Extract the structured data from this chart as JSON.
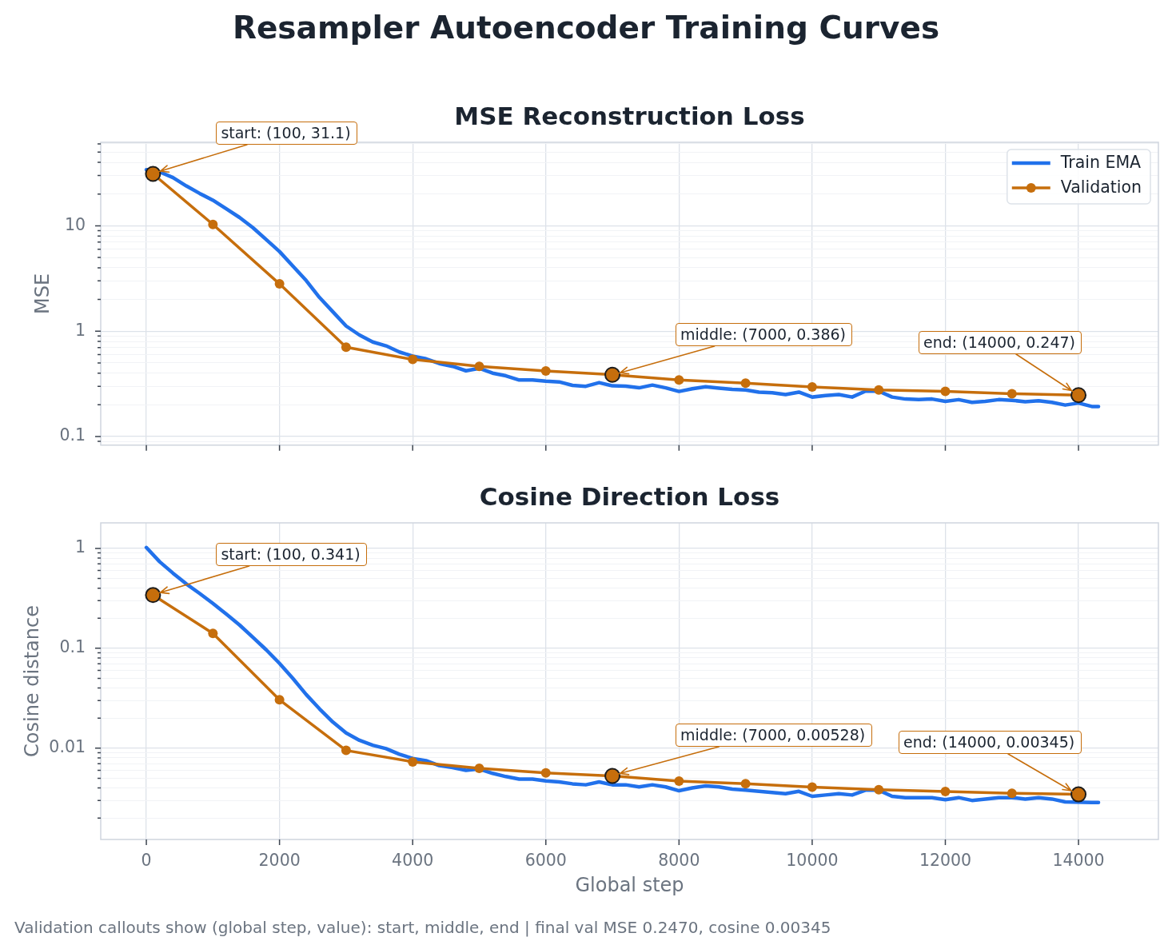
{
  "chart_data": [
    {
      "type": "other",
      "title": "Resampler Autoencoder Training Curves"
    },
    {
      "type": "line",
      "title": "MSE Reconstruction Loss",
      "ylabel": "MSE",
      "log": "y",
      "grid": true,
      "legend": "top right",
      "tick_labels": "y",
      "xlim": [
        -685,
        15200
      ],
      "xticks": [
        0,
        2000,
        4000,
        6000,
        8000,
        10000,
        12000,
        14000
      ],
      "ylim": [
        0.083,
        62
      ],
      "yticks": [
        {
          "value": 0.09,
          "label": null
        },
        0.1,
        {
          "value": 0.2,
          "label": null
        },
        {
          "value": 0.3,
          "label": null
        },
        {
          "value": 0.4,
          "label": null
        },
        {
          "value": 0.5,
          "label": null
        },
        {
          "value": 0.6,
          "label": null
        },
        {
          "value": 0.7,
          "label": null
        },
        {
          "value": 0.8,
          "label": null
        },
        {
          "value": 0.9,
          "label": null
        },
        1,
        {
          "value": 2,
          "label": null
        },
        {
          "value": 3,
          "label": null
        },
        {
          "value": 4,
          "label": null
        },
        {
          "value": 5,
          "label": null
        },
        {
          "value": 6,
          "label": null
        },
        {
          "value": 7,
          "label": null
        },
        {
          "value": 8,
          "label": null
        },
        {
          "value": 9,
          "label": null
        },
        10,
        {
          "value": 20,
          "label": null
        },
        {
          "value": 30,
          "label": null
        },
        {
          "value": 40,
          "label": null
        },
        {
          "value": 50,
          "label": null
        },
        {
          "value": 60,
          "label": null
        }
      ],
      "series": [
        {
          "name": "Train EMA",
          "color": "#2171eb",
          "marker": "none",
          "x": [
            0,
            200,
            400,
            600,
            800,
            1000,
            1200,
            1400,
            1600,
            1800,
            2000,
            2200,
            2400,
            2600,
            2800,
            3000,
            3200,
            3400,
            3600,
            3800,
            4000,
            4200,
            4400,
            4600,
            4800,
            5000,
            5200,
            5400,
            5600,
            5800,
            6000,
            6200,
            6400,
            6600,
            6800,
            7000,
            7200,
            7400,
            7600,
            7800,
            8000,
            8200,
            8400,
            8600,
            8800,
            9000,
            9200,
            9400,
            9600,
            9800,
            10000,
            10200,
            10400,
            10600,
            10800,
            11000,
            11200,
            11400,
            11600,
            11800,
            12000,
            12200,
            12400,
            12600,
            12800,
            13000,
            13200,
            13400,
            13600,
            13800,
            14000,
            14200,
            14300
          ],
          "values": [
            34.1,
            32.5,
            28.7,
            23.9,
            20.3,
            17.5,
            14.5,
            12.0,
            9.6,
            7.4,
            5.7,
            4.15,
            3.03,
            2.09,
            1.53,
            1.12,
            0.92,
            0.79,
            0.726,
            0.635,
            0.58,
            0.547,
            0.493,
            0.464,
            0.421,
            0.444,
            0.4,
            0.377,
            0.344,
            0.345,
            0.335,
            0.33,
            0.306,
            0.3,
            0.325,
            0.303,
            0.301,
            0.29,
            0.308,
            0.29,
            0.268,
            0.284,
            0.297,
            0.288,
            0.28,
            0.277,
            0.264,
            0.26,
            0.25,
            0.264,
            0.237,
            0.245,
            0.25,
            0.237,
            0.27,
            0.27,
            0.237,
            0.227,
            0.224,
            0.227,
            0.216,
            0.224,
            0.211,
            0.216,
            0.224,
            0.221,
            0.214,
            0.219,
            0.211,
            0.199,
            0.208,
            0.193,
            0.193
          ]
        },
        {
          "name": "Validation",
          "color": "#c66e0c",
          "marker": "circle",
          "x": [
            100,
            1000,
            2000,
            3000,
            4000,
            5000,
            6000,
            7000,
            8000,
            9000,
            10000,
            11000,
            12000,
            13000,
            14000
          ],
          "values": [
            31.1,
            10.3,
            2.81,
            0.705,
            0.539,
            0.464,
            0.42,
            0.386,
            0.344,
            0.321,
            0.296,
            0.277,
            0.268,
            0.255,
            0.247
          ]
        }
      ],
      "annotations": [
        {
          "text": "start: (100, 31.1)",
          "x": 100,
          "y": 31.1
        },
        {
          "text": "middle: (7000, 0.386)",
          "x": 7000,
          "y": 0.386
        },
        {
          "text": "end: (14000, 0.247)",
          "x": 14000,
          "y": 0.247
        }
      ]
    },
    {
      "type": "line",
      "title": "Cosine Direction Loss",
      "xlabel": "Global step",
      "ylabel": "Cosine distance",
      "log": "y",
      "grid": true,
      "xlim": [
        -685,
        15200
      ],
      "xticks": [
        0,
        2000,
        4000,
        6000,
        8000,
        10000,
        12000,
        14000
      ],
      "ylim": [
        0.00122,
        1.8
      ],
      "yticks": [
        {
          "value": 0.002,
          "label": null
        },
        {
          "value": 0.003,
          "label": null
        },
        {
          "value": 0.004,
          "label": null
        },
        {
          "value": 0.005,
          "label": null
        },
        {
          "value": 0.006,
          "label": null
        },
        {
          "value": 0.007,
          "label": null
        },
        {
          "value": 0.008,
          "label": null
        },
        {
          "value": 0.009,
          "label": null
        },
        0.01,
        {
          "value": 0.02,
          "label": null
        },
        {
          "value": 0.03,
          "label": null
        },
        {
          "value": 0.04,
          "label": null
        },
        {
          "value": 0.05,
          "label": null
        },
        {
          "value": 0.06,
          "label": null
        },
        {
          "value": 0.07,
          "label": null
        },
        {
          "value": 0.08,
          "label": null
        },
        {
          "value": 0.09,
          "label": null
        },
        0.1,
        {
          "value": 0.2,
          "label": null
        },
        {
          "value": 0.3,
          "label": null
        },
        {
          "value": 0.4,
          "label": null
        },
        {
          "value": 0.5,
          "label": null
        },
        {
          "value": 0.6,
          "label": null
        },
        {
          "value": 0.7,
          "label": null
        },
        {
          "value": 0.8,
          "label": null
        },
        {
          "value": 0.9,
          "label": null
        },
        1
      ],
      "series": [
        {
          "color": "#2171eb",
          "marker": "none",
          "x": [
            0,
            200,
            400,
            600,
            800,
            1000,
            1200,
            1400,
            1600,
            1800,
            2000,
            2200,
            2400,
            2600,
            2800,
            3000,
            3200,
            3400,
            3600,
            3800,
            4000,
            4200,
            4400,
            4600,
            4800,
            5000,
            5200,
            5400,
            5600,
            5800,
            6000,
            6200,
            6400,
            6600,
            6800,
            7000,
            7200,
            7400,
            7600,
            7800,
            8000,
            8200,
            8400,
            8600,
            8800,
            9000,
            9200,
            9400,
            9600,
            9800,
            10000,
            10200,
            10400,
            10600,
            10800,
            11000,
            11200,
            11400,
            11600,
            11800,
            12000,
            12200,
            12400,
            12600,
            12800,
            13000,
            13200,
            13400,
            13600,
            13800,
            14200,
            14300
          ],
          "values": [
            1.02,
            0.735,
            0.565,
            0.441,
            0.354,
            0.281,
            0.22,
            0.171,
            0.129,
            0.0966,
            0.0706,
            0.05,
            0.0345,
            0.0248,
            0.0183,
            0.0142,
            0.012,
            0.0107,
            0.0099,
            0.0087,
            0.0079,
            0.0075,
            0.0067,
            0.0064,
            0.006,
            0.0062,
            0.0056,
            0.0052,
            0.0049,
            0.0049,
            0.0047,
            0.0046,
            0.0044,
            0.0043,
            0.0046,
            0.0043,
            0.0043,
            0.0041,
            0.0043,
            0.0041,
            0.00375,
            0.004,
            0.0042,
            0.0041,
            0.0039,
            0.0038,
            0.0037,
            0.0036,
            0.0035,
            0.0037,
            0.0033,
            0.0034,
            0.0035,
            0.0034,
            0.0038,
            0.0038,
            0.0033,
            0.0032,
            0.0032,
            0.0032,
            0.00305,
            0.0032,
            0.003,
            0.0031,
            0.0032,
            0.0032,
            0.0031,
            0.0032,
            0.0031,
            0.0029,
            0.00286,
            0.00286
          ]
        },
        {
          "color": "#c66e0c",
          "marker": "circle",
          "x": [
            100,
            1000,
            2000,
            3000,
            4000,
            5000,
            6000,
            7000,
            8000,
            9000,
            10000,
            11000,
            12000,
            13000,
            14000
          ],
          "values": [
            0.341,
            0.141,
            0.0305,
            0.0095,
            0.0073,
            0.0063,
            0.00565,
            0.00528,
            0.00468,
            0.00441,
            0.00407,
            0.00384,
            0.00369,
            0.00354,
            0.00345
          ]
        }
      ],
      "annotations": [
        {
          "text": "start: (100, 0.341)",
          "x": 100,
          "y": 0.341
        },
        {
          "text": "middle: (7000, 0.00528)",
          "x": 7000,
          "y": 0.00528
        },
        {
          "text": "end: (14000, 0.00345)",
          "x": 14000,
          "y": 0.00345
        },
        "Validation callouts show (global step, value): start, middle, end | final val MSE 0.2470, cosine 0.00345"
      ]
    }
  ]
}
